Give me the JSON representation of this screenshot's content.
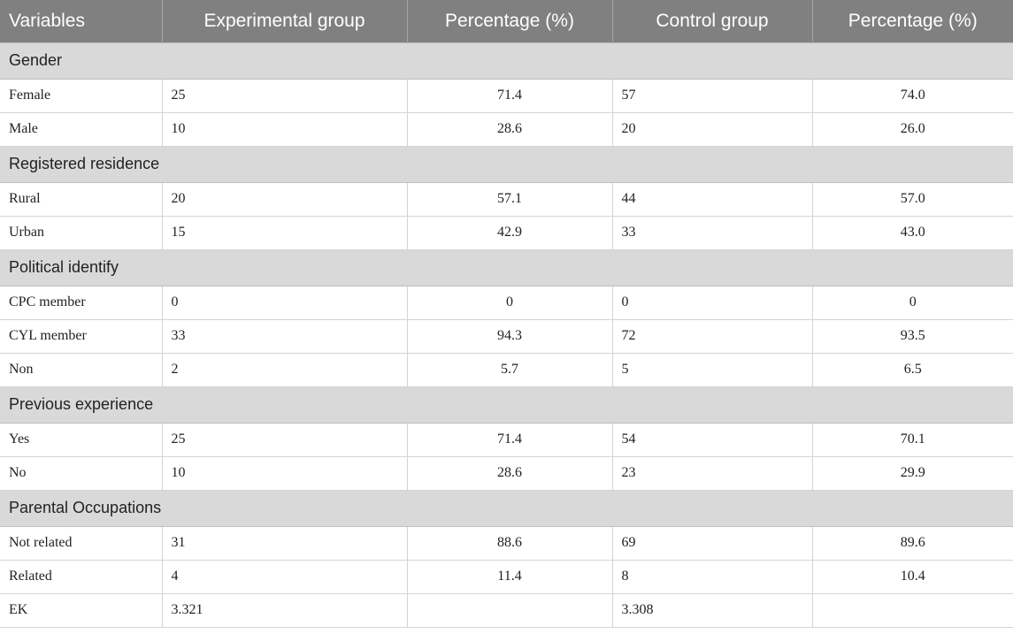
{
  "headers": [
    "Variables",
    "Experimental group",
    "Percentage (%)",
    "Control group",
    "Percentage (%)"
  ],
  "sections": [
    {
      "title": "Gender",
      "rows": [
        [
          "Female",
          "25",
          "71.4",
          "57",
          "74.0"
        ],
        [
          "Male",
          "10",
          "28.6",
          "20",
          "26.0"
        ]
      ]
    },
    {
      "title": "Registered residence",
      "rows": [
        [
          "Rural",
          "20",
          "57.1",
          "44",
          "57.0"
        ],
        [
          "Urban",
          "15",
          "42.9",
          "33",
          "43.0"
        ]
      ]
    },
    {
      "title": "Political identify",
      "rows": [
        [
          "CPC member",
          "0",
          "0",
          "0",
          "0"
        ],
        [
          "CYL member",
          "33",
          "94.3",
          "72",
          "93.5"
        ],
        [
          "Non",
          "2",
          "5.7",
          "5",
          "6.5"
        ]
      ]
    },
    {
      "title": "Previous experience",
      "rows": [
        [
          "Yes",
          "25",
          "71.4",
          "54",
          "70.1"
        ],
        [
          "No",
          "10",
          "28.6",
          "23",
          "29.9"
        ]
      ]
    },
    {
      "title": "Parental Occupations",
      "rows": [
        [
          "Not related",
          "31",
          "88.6",
          "69",
          "89.6"
        ],
        [
          "Related",
          "4",
          "11.4",
          "8",
          "10.4"
        ],
        [
          "EK",
          "3.321",
          "",
          "3.308",
          ""
        ]
      ]
    }
  ],
  "colors": {
    "header_bg": "#808080",
    "section_bg": "#d9d9d9"
  }
}
